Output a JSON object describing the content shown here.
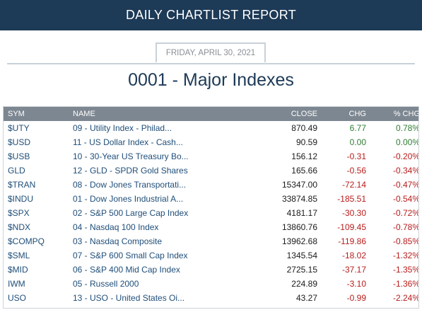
{
  "header": {
    "title": "DAILY CHARTLIST REPORT"
  },
  "report": {
    "date": "FRIDAY, APRIL 30, 2021",
    "list_title": "0001 - Major Indexes"
  },
  "table": {
    "columns": [
      "SYM",
      "NAME",
      "CLOSE",
      "CHG",
      "% CHG"
    ],
    "rows": [
      {
        "sym": "$UTY",
        "name": "09 - Utility Index - Philad...",
        "close": "870.49",
        "chg": "6.77",
        "pct": "0.78%",
        "dir": "pos"
      },
      {
        "sym": "$USD",
        "name": "11 - US Dollar Index - Cash...",
        "close": "90.59",
        "chg": "0.00",
        "pct": "0.00%",
        "dir": "pos"
      },
      {
        "sym": "$USB",
        "name": "10 - 30-Year US Treasury Bo...",
        "close": "156.12",
        "chg": "-0.31",
        "pct": "-0.20%",
        "dir": "neg"
      },
      {
        "sym": "GLD",
        "name": "12 - GLD - SPDR Gold Shares",
        "close": "165.66",
        "chg": "-0.56",
        "pct": "-0.34%",
        "dir": "neg"
      },
      {
        "sym": "$TRAN",
        "name": "08 - Dow Jones Transportati...",
        "close": "15347.00",
        "chg": "-72.14",
        "pct": "-0.47%",
        "dir": "neg"
      },
      {
        "sym": "$INDU",
        "name": "01 - Dow Jones Industrial A...",
        "close": "33874.85",
        "chg": "-185.51",
        "pct": "-0.54%",
        "dir": "neg"
      },
      {
        "sym": "$SPX",
        "name": "02 - S&P 500 Large Cap Index",
        "close": "4181.17",
        "chg": "-30.30",
        "pct": "-0.72%",
        "dir": "neg"
      },
      {
        "sym": "$NDX",
        "name": "04 - Nasdaq 100 Index",
        "close": "13860.76",
        "chg": "-109.45",
        "pct": "-0.78%",
        "dir": "neg"
      },
      {
        "sym": "$COMPQ",
        "name": "03 - Nasdaq Composite",
        "close": "13962.68",
        "chg": "-119.86",
        "pct": "-0.85%",
        "dir": "neg"
      },
      {
        "sym": "$SML",
        "name": "07 - S&P 600 Small Cap Index",
        "close": "1345.54",
        "chg": "-18.02",
        "pct": "-1.32%",
        "dir": "neg"
      },
      {
        "sym": "$MID",
        "name": "06 - S&P 400 Mid Cap Index",
        "close": "2725.15",
        "chg": "-37.17",
        "pct": "-1.35%",
        "dir": "neg"
      },
      {
        "sym": "IWM",
        "name": "05 - Russell 2000",
        "close": "224.89",
        "chg": "-3.10",
        "pct": "-1.36%",
        "dir": "neg"
      },
      {
        "sym": "USO",
        "name": "13 - USO - United States Oi...",
        "close": "43.27",
        "chg": "-0.99",
        "pct": "-2.24%",
        "dir": "neg"
      }
    ]
  },
  "colors": {
    "banner": "#1d3a57",
    "table_header": "#7d8791",
    "positive": "#2e7d32",
    "negative": "#b71c1c"
  }
}
